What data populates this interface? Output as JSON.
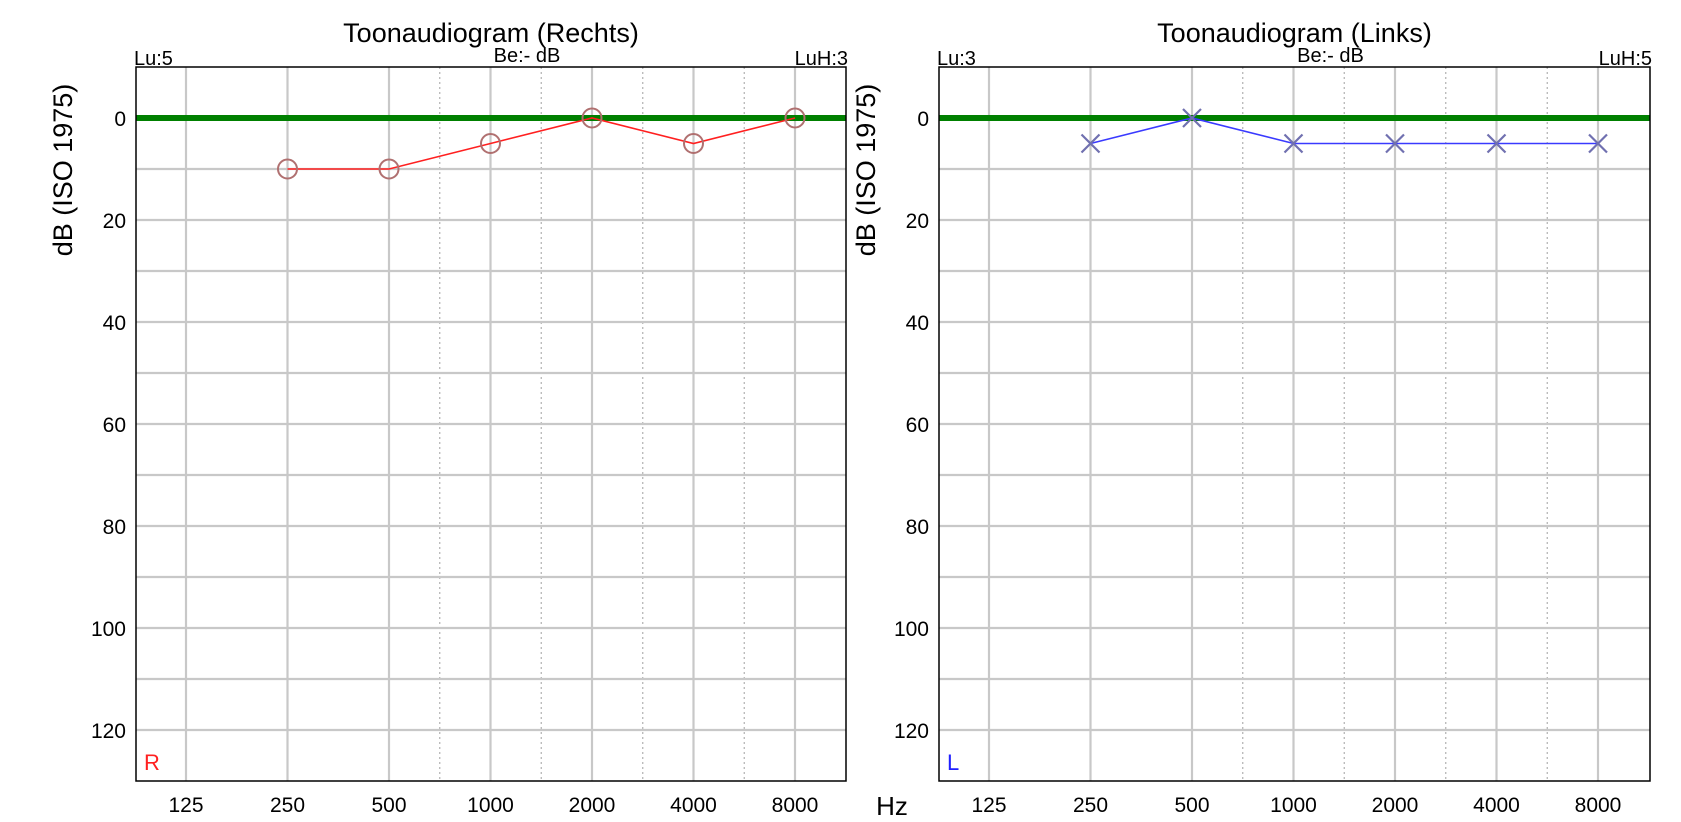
{
  "hz_label": "Hz",
  "chart_data": [
    {
      "type": "line",
      "title": "Toonaudiogram (Rechts)",
      "ylabel": "dB (ISO 1975)",
      "header_left": "Lu:5",
      "header_center": "Be:- dB",
      "header_right": "LuH:3",
      "ear_label": "R",
      "ear_color": "#ff2020",
      "marker": "circle",
      "y_reversed": true,
      "ylim": [
        -10,
        130
      ],
      "yticks": [
        0,
        20,
        40,
        60,
        80,
        100,
        120
      ],
      "categories": [
        "125",
        "250",
        "500",
        "1000",
        "2000",
        "4000",
        "8000"
      ],
      "reference_line": {
        "y": 0,
        "color": "#008000"
      },
      "grid": true,
      "series": [
        {
          "x": [
            "250",
            "500",
            "1000",
            "2000",
            "4000",
            "8000"
          ],
          "values": [
            10,
            10,
            5,
            0,
            5,
            0
          ],
          "line_color": "#ff2020",
          "marker_color": "#b07070"
        }
      ]
    },
    {
      "type": "line",
      "title": "Toonaudiogram (Links)",
      "ylabel": "dB (ISO 1975)",
      "header_left": "Lu:3",
      "header_center": "Be:- dB",
      "header_right": "LuH:5",
      "ear_label": "L",
      "ear_color": "#2020ff",
      "marker": "cross",
      "y_reversed": true,
      "ylim": [
        -10,
        130
      ],
      "yticks": [
        0,
        20,
        40,
        60,
        80,
        100,
        120
      ],
      "categories": [
        "125",
        "250",
        "500",
        "1000",
        "2000",
        "4000",
        "8000"
      ],
      "reference_line": {
        "y": 0,
        "color": "#008000"
      },
      "grid": true,
      "series": [
        {
          "x": [
            "250",
            "500",
            "1000",
            "2000",
            "4000",
            "8000"
          ],
          "values": [
            5,
            0,
            5,
            5,
            5,
            5
          ],
          "line_color": "#3a3aff",
          "marker_color": "#7070b0"
        }
      ]
    }
  ]
}
